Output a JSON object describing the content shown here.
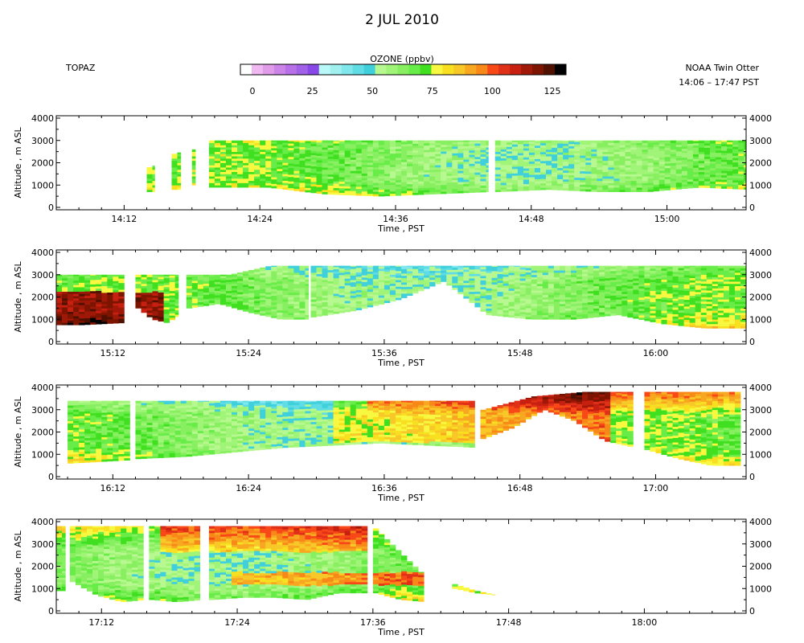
{
  "chart_data": {
    "type": "heatmap",
    "title": "2 JUL 2010",
    "site": "TOPAZ",
    "platform": "NOAA Twin Otter",
    "time_range": "14:06 – 17:47 PST",
    "colorbar": {
      "label": "OZONE (ppbv)",
      "min": 0,
      "max": 125,
      "step": 5,
      "ticks": [
        "0",
        "25",
        "50",
        "75",
        "100",
        "125"
      ],
      "colors": [
        "#ffffff",
        "#f0b8f0",
        "#e09ce8",
        "#cc84e8",
        "#b870e8",
        "#a060e8",
        "#8848e8",
        "#b8f8f8",
        "#a0f0f0",
        "#80e8ec",
        "#60dce4",
        "#40d0dc",
        "#b8f890",
        "#a0f478",
        "#88f060",
        "#68ec48",
        "#40e020",
        "#f8f840",
        "#f8e020",
        "#f8c828",
        "#f8a820",
        "#f88818",
        "#f84818",
        "#e03018",
        "#c82010",
        "#a01808",
        "#7c1400",
        "#501000",
        "#000000"
      ]
    },
    "ylabel": "Altitude , m ASL",
    "xlabel": "Time , PST",
    "ylim": [
      0,
      4000
    ],
    "yticks": [
      "0",
      "1000",
      "2000",
      "3000",
      "4000"
    ],
    "panels": [
      {
        "xlim": [
          "14:06",
          "15:07"
        ],
        "xticks": [
          "14:12",
          "14:24",
          "14:36",
          "14:48",
          "15:00"
        ],
        "segments": [
          {
            "start": "14:14.0",
            "end": "14:14.7",
            "bottom": [
              700,
              700
            ],
            "top": [
              1800,
              1900
            ]
          },
          {
            "start": "14:16.2",
            "end": "14:17.0",
            "bottom": [
              800,
              800
            ],
            "top": [
              2400,
              2500
            ]
          },
          {
            "start": "14:18.0",
            "end": "14:18.3",
            "bottom": [
              1000,
              1000
            ],
            "top": [
              2600,
              2700
            ]
          },
          {
            "start": "14:19.5",
            "end": "14:44.2",
            "bottom": [
              900,
              900,
              600,
              500,
              600,
              700
            ],
            "top": [
              3000,
              3000
            ]
          },
          {
            "start": "14:44.8",
            "end": "15:07.0",
            "bottom": [
              700,
              800,
              700,
              700,
              900,
              800
            ],
            "top": [
              3000,
              3000
            ]
          }
        ]
      },
      {
        "xlim": [
          "15:07",
          "16:08"
        ],
        "xticks": [
          "15:12",
          "15:24",
          "15:36",
          "15:48",
          "16:00"
        ],
        "segments": [
          {
            "start": "15:07.0",
            "end": "15:13.0",
            "bottom": [
              750,
              750,
              800,
              850
            ],
            "top": [
              3000,
              3000
            ]
          },
          {
            "start": "15:14.0",
            "end": "15:17.8",
            "bottom": [
              1500,
              1000,
              850,
              1200
            ],
            "top": [
              3000,
              3000
            ]
          },
          {
            "start": "15:18.5",
            "end": "15:29.3",
            "bottom": [
              1500,
              1700,
              1300,
              1000,
              1000
            ],
            "top": [
              3000,
              3000,
              3400,
              3400
            ]
          },
          {
            "start": "15:29.5",
            "end": "16:08.0",
            "bottom": [
              1100,
              1400,
              1900,
              2700,
              1200,
              1000,
              1000,
              1200,
              800,
              600,
              600
            ],
            "top": [
              3400,
              3400
            ]
          }
        ]
      },
      {
        "xlim": [
          "16:07",
          "17:08"
        ],
        "xticks": [
          "16:12",
          "16:24",
          "16:36",
          "16:48",
          "17:00"
        ],
        "segments": [
          {
            "start": "16:08.0",
            "end": "16:13.5",
            "bottom": [
              600,
              650,
              700,
              750
            ],
            "top": [
              3400,
              3400
            ]
          },
          {
            "start": "16:14.0",
            "end": "16:44.0",
            "bottom": [
              800,
              900,
              1100,
              1300,
              1400,
              1500,
              1400,
              1300
            ],
            "top": [
              3400,
              3400
            ]
          },
          {
            "start": "16:44.5",
            "end": "16:58.0",
            "bottom": [
              1700,
              2200,
              3000,
              2500,
              1600,
              1300
            ],
            "top": [
              3000,
              3600,
              3800,
              3800
            ]
          },
          {
            "start": "16:59.0",
            "end": "17:07.5",
            "bottom": [
              1200,
              800,
              500,
              500
            ],
            "top": [
              3800,
              3800
            ]
          }
        ]
      },
      {
        "xlim": [
          "17:08",
          "18:09"
        ],
        "xticks": [
          "17:12",
          "17:24",
          "17:36",
          "17:48",
          "18:00"
        ],
        "segments": [
          {
            "start": "17:08.0",
            "end": "17:08.8",
            "bottom": [
              900,
              900
            ],
            "top": [
              3800,
              3800
            ]
          },
          {
            "start": "17:09.2",
            "end": "17:15.7",
            "bottom": [
              1300,
              700,
              400,
              500
            ],
            "top": [
              3800,
              3800
            ]
          },
          {
            "start": "17:16.2",
            "end": "17:20.7",
            "bottom": [
              500,
              400,
              500
            ],
            "top": [
              3800,
              3800
            ]
          },
          {
            "start": "17:21.5",
            "end": "17:35.5",
            "bottom": [
              500,
              600,
              600,
              500,
              800,
              800
            ],
            "top": [
              3800,
              3800
            ]
          },
          {
            "start": "17:36.0",
            "end": "17:40.5",
            "bottom": [
              800,
              500,
              400
            ],
            "top": [
              3700,
              2600,
              1500
            ]
          },
          {
            "start": "17:43.0",
            "end": "17:46.8",
            "bottom": [
              1000,
              800,
              700
            ],
            "top": [
              1200,
              900,
              700
            ]
          }
        ]
      }
    ]
  }
}
